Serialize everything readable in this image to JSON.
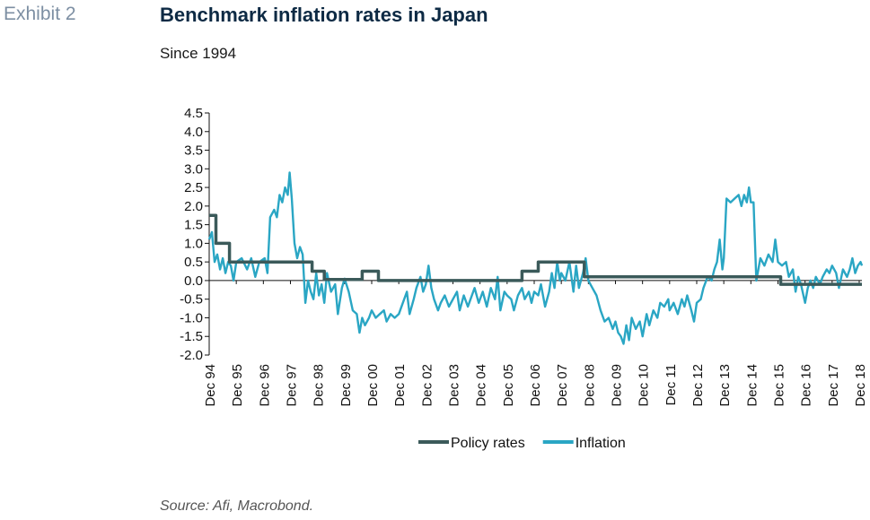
{
  "header": {
    "exhibit": "Exhibit 2",
    "title": "Benchmark inflation rates in Japan",
    "subtitle": "Since 1994"
  },
  "footer": {
    "source": "Source: Afi, Macrobond."
  },
  "chart_data": {
    "type": "line",
    "title": "Benchmark inflation rates in Japan",
    "subtitle": "Since 1994",
    "xlabel": "",
    "ylabel": "",
    "ylim": [
      -2.0,
      4.5
    ],
    "yticks": [
      4.5,
      4.0,
      3.5,
      3.0,
      2.5,
      2.0,
      1.5,
      1.0,
      0.5,
      0.0,
      -0.5,
      -1.0,
      -1.5,
      -2.0
    ],
    "xlim": [
      1994.95,
      2019.05
    ],
    "xticks": [
      {
        "x": 1994.95,
        "label": "Dec 94"
      },
      {
        "x": 1995.95,
        "label": "Dec 95"
      },
      {
        "x": 1996.95,
        "label": "Dec 96"
      },
      {
        "x": 1997.95,
        "label": "Dec 97"
      },
      {
        "x": 1998.95,
        "label": "Dec 98"
      },
      {
        "x": 1999.95,
        "label": "Dec 99"
      },
      {
        "x": 2000.95,
        "label": "Dec 00"
      },
      {
        "x": 2001.95,
        "label": "Dec 01"
      },
      {
        "x": 2002.95,
        "label": "Dec 02"
      },
      {
        "x": 2003.95,
        "label": "Dec 03"
      },
      {
        "x": 2004.95,
        "label": "Dec 04"
      },
      {
        "x": 2005.95,
        "label": "Dec 05"
      },
      {
        "x": 2006.95,
        "label": "Dec 06"
      },
      {
        "x": 2007.95,
        "label": "Dec 07"
      },
      {
        "x": 2008.95,
        "label": "Dec 08"
      },
      {
        "x": 2009.95,
        "label": "Dec 09"
      },
      {
        "x": 2010.95,
        "label": "Dec 10"
      },
      {
        "x": 2011.95,
        "label": "Dec 11"
      },
      {
        "x": 2012.95,
        "label": "Dec 12"
      },
      {
        "x": 2013.95,
        "label": "Dec 13"
      },
      {
        "x": 2014.95,
        "label": "Dec 14"
      },
      {
        "x": 2015.95,
        "label": "Dec 15"
      },
      {
        "x": 2016.95,
        "label": "Dec 16"
      },
      {
        "x": 2017.95,
        "label": "Dec 17"
      },
      {
        "x": 2018.95,
        "label": "Dec 18"
      }
    ],
    "grid": false,
    "legend_position": "bottom-center",
    "series": [
      {
        "name": "Policy rates",
        "color": "#3b5a5a",
        "step": true,
        "points": [
          [
            1994.95,
            1.75
          ],
          [
            1995.2,
            1.75
          ],
          [
            1995.2,
            1.0
          ],
          [
            1995.7,
            1.0
          ],
          [
            1995.7,
            0.5
          ],
          [
            1998.75,
            0.5
          ],
          [
            1998.75,
            0.25
          ],
          [
            1999.2,
            0.25
          ],
          [
            1999.2,
            0.03
          ],
          [
            2000.6,
            0.03
          ],
          [
            2000.6,
            0.25
          ],
          [
            2001.2,
            0.25
          ],
          [
            2001.2,
            0.0
          ],
          [
            2006.5,
            0.0
          ],
          [
            2006.5,
            0.25
          ],
          [
            2007.1,
            0.25
          ],
          [
            2007.1,
            0.5
          ],
          [
            2008.8,
            0.5
          ],
          [
            2008.8,
            0.1
          ],
          [
            2016.05,
            0.1
          ],
          [
            2016.05,
            -0.1
          ],
          [
            2019.05,
            -0.1
          ]
        ]
      },
      {
        "name": "Inflation",
        "color": "#2aa6c4",
        "step": false,
        "points": [
          [
            1994.95,
            1.1
          ],
          [
            1995.05,
            1.3
          ],
          [
            1995.15,
            0.5
          ],
          [
            1995.25,
            0.7
          ],
          [
            1995.35,
            0.3
          ],
          [
            1995.45,
            0.6
          ],
          [
            1995.55,
            0.2
          ],
          [
            1995.65,
            0.5
          ],
          [
            1995.75,
            0.4
          ],
          [
            1995.85,
            0.0
          ],
          [
            1995.95,
            0.5
          ],
          [
            1996.15,
            0.6
          ],
          [
            1996.35,
            0.3
          ],
          [
            1996.5,
            0.6
          ],
          [
            1996.65,
            0.1
          ],
          [
            1996.8,
            0.5
          ],
          [
            1997.0,
            0.6
          ],
          [
            1997.1,
            0.2
          ],
          [
            1997.2,
            1.7
          ],
          [
            1997.35,
            1.9
          ],
          [
            1997.45,
            1.7
          ],
          [
            1997.55,
            2.3
          ],
          [
            1997.65,
            2.1
          ],
          [
            1997.75,
            2.5
          ],
          [
            1997.85,
            2.3
          ],
          [
            1997.92,
            2.9
          ],
          [
            1998.0,
            2.2
          ],
          [
            1998.1,
            1.0
          ],
          [
            1998.2,
            0.6
          ],
          [
            1998.3,
            0.9
          ],
          [
            1998.4,
            0.7
          ],
          [
            1998.5,
            -0.6
          ],
          [
            1998.6,
            0.0
          ],
          [
            1998.7,
            -0.3
          ],
          [
            1998.8,
            -0.5
          ],
          [
            1998.9,
            0.2
          ],
          [
            1999.0,
            -0.4
          ],
          [
            1999.1,
            -0.1
          ],
          [
            1999.2,
            -0.6
          ],
          [
            1999.3,
            0.2
          ],
          [
            1999.45,
            -0.3
          ],
          [
            1999.6,
            -0.1
          ],
          [
            1999.7,
            -0.9
          ],
          [
            1999.85,
            -0.2
          ],
          [
            1999.95,
            0.05
          ],
          [
            2000.1,
            -0.3
          ],
          [
            2000.25,
            -0.8
          ],
          [
            2000.4,
            -0.9
          ],
          [
            2000.5,
            -1.4
          ],
          [
            2000.6,
            -1.0
          ],
          [
            2000.7,
            -1.2
          ],
          [
            2000.85,
            -1.0
          ],
          [
            2000.95,
            -0.8
          ],
          [
            2001.1,
            -1.0
          ],
          [
            2001.25,
            -0.9
          ],
          [
            2001.4,
            -0.8
          ],
          [
            2001.5,
            -1.1
          ],
          [
            2001.65,
            -0.9
          ],
          [
            2001.8,
            -1.0
          ],
          [
            2001.95,
            -0.9
          ],
          [
            2002.1,
            -0.6
          ],
          [
            2002.25,
            -0.3
          ],
          [
            2002.35,
            -0.9
          ],
          [
            2002.5,
            -0.5
          ],
          [
            2002.6,
            -0.2
          ],
          [
            2002.75,
            0.1
          ],
          [
            2002.85,
            -0.3
          ],
          [
            2002.95,
            -0.1
          ],
          [
            2003.05,
            0.4
          ],
          [
            2003.15,
            -0.2
          ],
          [
            2003.25,
            -0.5
          ],
          [
            2003.4,
            -0.8
          ],
          [
            2003.5,
            -0.6
          ],
          [
            2003.65,
            -0.4
          ],
          [
            2003.8,
            -0.7
          ],
          [
            2003.95,
            -0.5
          ],
          [
            2004.1,
            -0.3
          ],
          [
            2004.2,
            -0.8
          ],
          [
            2004.35,
            -0.4
          ],
          [
            2004.5,
            -0.7
          ],
          [
            2004.6,
            -0.5
          ],
          [
            2004.75,
            -0.2
          ],
          [
            2004.9,
            -0.6
          ],
          [
            2005.05,
            -0.3
          ],
          [
            2005.2,
            -0.7
          ],
          [
            2005.35,
            -0.2
          ],
          [
            2005.5,
            -0.5
          ],
          [
            2005.6,
            0.1
          ],
          [
            2005.7,
            -0.8
          ],
          [
            2005.85,
            -0.3
          ],
          [
            2005.95,
            -0.4
          ],
          [
            2006.1,
            -0.5
          ],
          [
            2006.2,
            -0.8
          ],
          [
            2006.35,
            -0.4
          ],
          [
            2006.5,
            -0.2
          ],
          [
            2006.6,
            -0.5
          ],
          [
            2006.75,
            -0.3
          ],
          [
            2006.85,
            -0.6
          ],
          [
            2006.95,
            -0.3
          ],
          [
            2007.1,
            -0.4
          ],
          [
            2007.2,
            -0.1
          ],
          [
            2007.35,
            -0.7
          ],
          [
            2007.5,
            -0.3
          ],
          [
            2007.6,
            0.2
          ],
          [
            2007.7,
            -0.2
          ],
          [
            2007.8,
            0.5
          ],
          [
            2007.9,
            0.0
          ],
          [
            2007.95,
            0.2
          ],
          [
            2008.1,
            0.0
          ],
          [
            2008.25,
            0.5
          ],
          [
            2008.4,
            -0.3
          ],
          [
            2008.5,
            0.4
          ],
          [
            2008.6,
            -0.2
          ],
          [
            2008.75,
            0.2
          ],
          [
            2008.85,
            0.6
          ],
          [
            2008.95,
            0.0
          ],
          [
            2009.1,
            -0.2
          ],
          [
            2009.25,
            -0.4
          ],
          [
            2009.4,
            -0.8
          ],
          [
            2009.55,
            -1.1
          ],
          [
            2009.7,
            -1.0
          ],
          [
            2009.85,
            -1.3
          ],
          [
            2009.95,
            -1.1
          ],
          [
            2010.05,
            -1.4
          ],
          [
            2010.15,
            -1.5
          ],
          [
            2010.25,
            -1.7
          ],
          [
            2010.35,
            -1.2
          ],
          [
            2010.45,
            -1.6
          ],
          [
            2010.55,
            -1.0
          ],
          [
            2010.7,
            -1.3
          ],
          [
            2010.85,
            -1.1
          ],
          [
            2010.95,
            -1.5
          ],
          [
            2011.1,
            -0.9
          ],
          [
            2011.2,
            -1.2
          ],
          [
            2011.35,
            -0.8
          ],
          [
            2011.5,
            -1.0
          ],
          [
            2011.6,
            -0.6
          ],
          [
            2011.75,
            -0.7
          ],
          [
            2011.9,
            -0.5
          ],
          [
            2011.95,
            -0.8
          ],
          [
            2012.1,
            -0.6
          ],
          [
            2012.25,
            -0.9
          ],
          [
            2012.4,
            -0.5
          ],
          [
            2012.5,
            -0.7
          ],
          [
            2012.6,
            -0.4
          ],
          [
            2012.75,
            -0.8
          ],
          [
            2012.85,
            -1.1
          ],
          [
            2012.95,
            -0.6
          ],
          [
            2013.1,
            -0.5
          ],
          [
            2013.2,
            -0.2
          ],
          [
            2013.35,
            0.1
          ],
          [
            2013.5,
            0.0
          ],
          [
            2013.6,
            0.3
          ],
          [
            2013.7,
            0.5
          ],
          [
            2013.8,
            1.1
          ],
          [
            2013.9,
            0.3
          ],
          [
            2013.95,
            0.6
          ],
          [
            2014.05,
            2.2
          ],
          [
            2014.2,
            2.1
          ],
          [
            2014.35,
            2.2
          ],
          [
            2014.5,
            2.3
          ],
          [
            2014.6,
            2.0
          ],
          [
            2014.7,
            2.3
          ],
          [
            2014.8,
            2.1
          ],
          [
            2014.88,
            2.5
          ],
          [
            2014.95,
            2.1
          ],
          [
            2015.05,
            2.1
          ],
          [
            2015.15,
            0.0
          ],
          [
            2015.3,
            0.6
          ],
          [
            2015.45,
            0.4
          ],
          [
            2015.6,
            0.7
          ],
          [
            2015.75,
            0.5
          ],
          [
            2015.85,
            1.1
          ],
          [
            2015.95,
            0.5
          ],
          [
            2016.1,
            0.4
          ],
          [
            2016.25,
            0.5
          ],
          [
            2016.35,
            0.1
          ],
          [
            2016.5,
            0.3
          ],
          [
            2016.6,
            -0.3
          ],
          [
            2016.7,
            0.1
          ],
          [
            2016.8,
            -0.1
          ],
          [
            2016.95,
            -0.6
          ],
          [
            2017.05,
            -0.2
          ],
          [
            2017.15,
            0.0
          ],
          [
            2017.25,
            -0.2
          ],
          [
            2017.35,
            0.1
          ],
          [
            2017.5,
            -0.1
          ],
          [
            2017.6,
            0.1
          ],
          [
            2017.75,
            0.3
          ],
          [
            2017.85,
            0.2
          ],
          [
            2017.95,
            0.4
          ],
          [
            2018.1,
            0.2
          ],
          [
            2018.2,
            -0.2
          ],
          [
            2018.35,
            0.3
          ],
          [
            2018.5,
            0.1
          ],
          [
            2018.6,
            0.3
          ],
          [
            2018.7,
            0.6
          ],
          [
            2018.8,
            0.2
          ],
          [
            2018.9,
            0.4
          ],
          [
            2019.0,
            0.5
          ],
          [
            2019.05,
            0.4
          ]
        ]
      }
    ]
  }
}
